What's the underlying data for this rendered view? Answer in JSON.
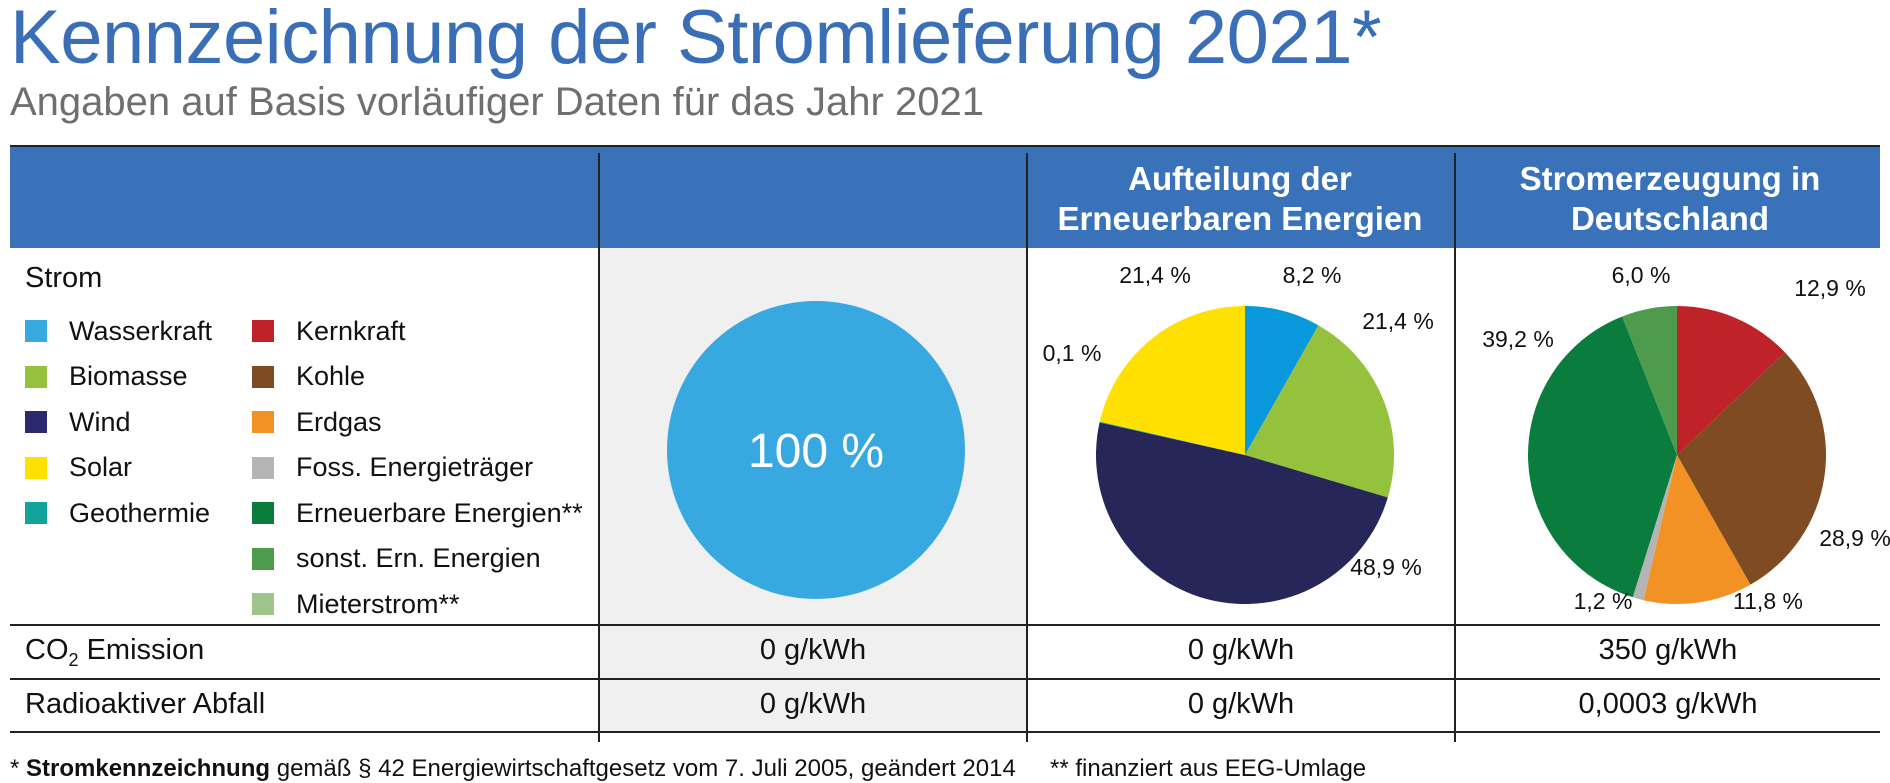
{
  "title": "Kennzeichnung der Stromlieferung 2021*",
  "subtitle": "Angaben auf Basis vorläufiger Daten für das Jahr 2021",
  "header": {
    "col3": "Aufteilung der Erneuerbaren Energien",
    "col4": "Stromerzeugung in Deutschland"
  },
  "legend": {
    "heading": "Strom",
    "items": [
      {
        "label": "Wasserkraft",
        "color": "#38a8e0"
      },
      {
        "label": "Biomasse",
        "color": "#94c23d"
      },
      {
        "label": "Wind",
        "color": "#2b2a6f"
      },
      {
        "label": "Solar",
        "color": "#ffe000"
      },
      {
        "label": "Geothermie",
        "color": "#12a49b"
      },
      {
        "label": "Kernkraft",
        "color": "#c0222a"
      },
      {
        "label": "Kohle",
        "color": "#7e4b22"
      },
      {
        "label": "Erdgas",
        "color": "#f29124"
      },
      {
        "label": "Foss. Energieträger",
        "color": "#b4b4b4"
      },
      {
        "label": "Erneuerbare Energien**",
        "color": "#0a7c3e"
      },
      {
        "label": "sonst. Ern. Energien",
        "color": "#4f9b4e"
      },
      {
        "label": "Mieterstrom**",
        "color": "#9fc58c"
      }
    ]
  },
  "rows": {
    "co2_label_prefix": "CO",
    "co2_label_sub": "2",
    "co2_label_suffix": " Emission",
    "co2_values": [
      "0 g/kWh",
      "0 g/kWh",
      "350 g/kWh"
    ],
    "waste_label": "Radioaktiver Abfall",
    "waste_values": [
      "0 g/kWh",
      "0 g/kWh",
      "0,0003 g/kWh"
    ]
  },
  "footnote": {
    "prefix": "* ",
    "bold": "Stromkennzeichnung",
    "rest": " gemäß § 42 Energiewirtschaftgesetz vom 7. Juli 2005, geändert 2014",
    "second": "** finanziert aus EEG-Umlage"
  },
  "chart_data": [
    {
      "type": "pie",
      "labels": [
        "Wasserkraft"
      ],
      "values": [
        100
      ],
      "value_labels": [
        "100 %"
      ],
      "colors": [
        "#38a8e0"
      ]
    },
    {
      "type": "pie",
      "title": "Aufteilung der Erneuerbaren Energien",
      "labels": [
        "Wasserkraft",
        "Biomasse",
        "Wind",
        "Geothermie",
        "Solar"
      ],
      "values": [
        8.2,
        21.4,
        48.9,
        0.1,
        21.4
      ],
      "value_labels": [
        "8,2 %",
        "21,4 %",
        "48,9 %",
        "0,1 %",
        "21,4 %"
      ],
      "colors": [
        "#0a98dc",
        "#94c23d",
        "#272658",
        "#12a49b",
        "#ffe000"
      ]
    },
    {
      "type": "pie",
      "title": "Stromerzeugung in Deutschland",
      "labels": [
        "Kernkraft",
        "Kohle",
        "Erdgas",
        "Foss. Energieträger",
        "Erneuerbare Energien**",
        "sonst. Ern. Energien"
      ],
      "values": [
        12.9,
        28.9,
        11.8,
        1.2,
        39.2,
        6.0
      ],
      "value_labels": [
        "12,9 %",
        "28,9 %",
        "11,8 %",
        "1,2 %",
        "39,2 %",
        "6,0 %"
      ],
      "colors": [
        "#c0222a",
        "#7e4b22",
        "#f29124",
        "#b4b4b4",
        "#0a7c3e",
        "#4f9b4e"
      ]
    }
  ]
}
